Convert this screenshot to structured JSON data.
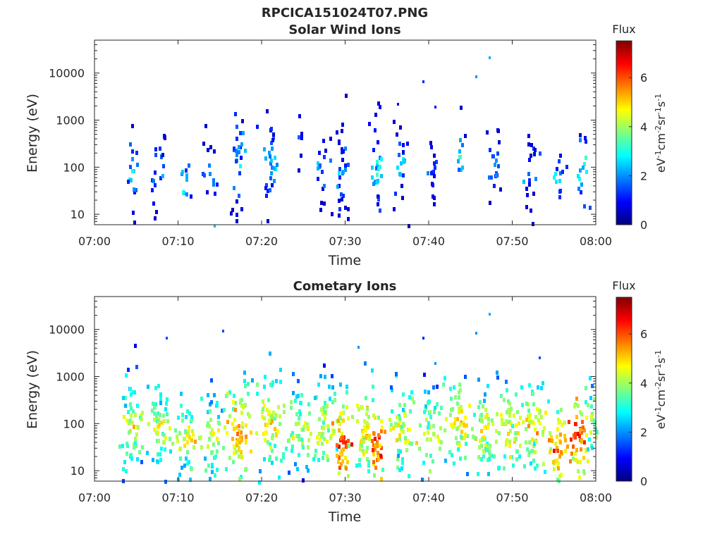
{
  "figure": {
    "title": "RPCICA151024T07.PNG"
  },
  "colormap": [
    "#00007f",
    "#0000ff",
    "#007fff",
    "#00ffff",
    "#7fff7f",
    "#ffff00",
    "#ff7f00",
    "#ff0000",
    "#7f0000"
  ],
  "chart_data": [
    {
      "type": "heatmap",
      "title": "Solar Wind Ions",
      "xlabel": "Time",
      "ylabel": "Energy (eV)",
      "x_ticks": [
        "07:00",
        "07:10",
        "07:20",
        "07:30",
        "07:40",
        "07:50",
        "08:00"
      ],
      "x_range_min": [
        0,
        60
      ],
      "y_ticks": [
        "10",
        "100",
        "1000",
        "10000"
      ],
      "y_scale": "log",
      "ylim": [
        6,
        50000
      ],
      "colorbar": {
        "label": "Flux",
        "unit": "eV-1cm-2sr-1s-1",
        "ticks": [
          "0",
          "2",
          "4",
          "6"
        ],
        "range": [
          0,
          7.5
        ]
      },
      "grid": false,
      "bursts": [
        {
          "t": 4.5,
          "e": 80,
          "v": 2.5,
          "w": 0.6,
          "spread": 0.5,
          "n": 18
        },
        {
          "t": 7.5,
          "e": 90,
          "v": 2.2,
          "w": 0.8,
          "spread": 0.5,
          "n": 22
        },
        {
          "t": 10.8,
          "e": 50,
          "v": 2.5,
          "w": 0.6,
          "spread": 0.3,
          "n": 10
        },
        {
          "t": 13.5,
          "e": 90,
          "v": 1.8,
          "w": 0.8,
          "spread": 0.5,
          "n": 14
        },
        {
          "t": 17.0,
          "e": 130,
          "v": 2.3,
          "w": 0.7,
          "spread": 0.7,
          "n": 28
        },
        {
          "t": 21.0,
          "e": 160,
          "v": 2.4,
          "w": 0.8,
          "spread": 0.6,
          "n": 30
        },
        {
          "t": 24.5,
          "e": 400,
          "v": 1.5,
          "w": 0.3,
          "spread": 0.3,
          "n": 6
        },
        {
          "t": 27.0,
          "e": 110,
          "v": 1.8,
          "w": 0.8,
          "spread": 0.5,
          "n": 18
        },
        {
          "t": 29.5,
          "e": 80,
          "v": 1.8,
          "w": 0.7,
          "spread": 0.6,
          "n": 34
        },
        {
          "t": 33.7,
          "e": 100,
          "v": 2.8,
          "w": 0.6,
          "spread": 0.6,
          "n": 28
        },
        {
          "t": 36.5,
          "e": 120,
          "v": 2.2,
          "w": 0.7,
          "spread": 0.5,
          "n": 22
        },
        {
          "t": 40.5,
          "e": 90,
          "v": 1.5,
          "w": 0.6,
          "spread": 0.5,
          "n": 16
        },
        {
          "t": 43.8,
          "e": 180,
          "v": 2.5,
          "w": 0.5,
          "spread": 0.5,
          "n": 12
        },
        {
          "t": 47.5,
          "e": 110,
          "v": 1.8,
          "w": 0.8,
          "spread": 0.5,
          "n": 20
        },
        {
          "t": 52.0,
          "e": 90,
          "v": 1.8,
          "w": 0.8,
          "spread": 0.5,
          "n": 22
        },
        {
          "t": 55.5,
          "e": 60,
          "v": 2.5,
          "w": 0.6,
          "spread": 0.4,
          "n": 14
        },
        {
          "t": 58.5,
          "e": 90,
          "v": 2.8,
          "w": 0.6,
          "spread": 0.5,
          "n": 16
        }
      ],
      "isolated_points": [
        {
          "t": 47.2,
          "e": 23000,
          "v": 2.2
        },
        {
          "t": 45.6,
          "e": 9000,
          "v": 2.0
        },
        {
          "t": 39.2,
          "e": 7000,
          "v": 1.2
        },
        {
          "t": 40.7,
          "e": 2000,
          "v": 1.0
        },
        {
          "t": 36.2,
          "e": 2300,
          "v": 1.0
        },
        {
          "t": 14.3,
          "e": 6,
          "v": 2.3
        }
      ]
    },
    {
      "type": "heatmap",
      "title": "Cometary Ions",
      "xlabel": "Time",
      "ylabel": "Energy (eV)",
      "x_ticks": [
        "07:00",
        "07:10",
        "07:20",
        "07:30",
        "07:40",
        "07:50",
        "08:00"
      ],
      "x_range_min": [
        0,
        60
      ],
      "y_ticks": [
        "10",
        "100",
        "1000",
        "10000"
      ],
      "y_scale": "log",
      "ylim": [
        6,
        50000
      ],
      "colorbar": {
        "label": "Flux",
        "unit": "eV-1cm-2sr-1s-1",
        "ticks": [
          "0",
          "2",
          "4",
          "6"
        ],
        "range": [
          0,
          7.5
        ]
      },
      "grid": false,
      "bursts": [
        {
          "t": 4.5,
          "e": 90,
          "v": 4.2,
          "w": 1.2,
          "spread": 0.55,
          "n": 60
        },
        {
          "t": 7.5,
          "e": 90,
          "v": 4.4,
          "w": 1.3,
          "spread": 0.55,
          "n": 60
        },
        {
          "t": 10.8,
          "e": 50,
          "v": 4.6,
          "w": 1.1,
          "spread": 0.45,
          "n": 50
        },
        {
          "t": 14.0,
          "e": 60,
          "v": 4.2,
          "w": 1.2,
          "spread": 0.5,
          "n": 50
        },
        {
          "t": 17.2,
          "e": 70,
          "v": 5.3,
          "w": 1.2,
          "spread": 0.6,
          "n": 70
        },
        {
          "t": 20.8,
          "e": 90,
          "v": 4.8,
          "w": 1.3,
          "spread": 0.6,
          "n": 70
        },
        {
          "t": 24.5,
          "e": 90,
          "v": 4.2,
          "w": 1.1,
          "spread": 0.55,
          "n": 55
        },
        {
          "t": 27.5,
          "e": 90,
          "v": 4.5,
          "w": 1.2,
          "spread": 0.55,
          "n": 60
        },
        {
          "t": 29.5,
          "e": 45,
          "v": 6.2,
          "w": 0.8,
          "spread": 0.45,
          "n": 50
        },
        {
          "t": 32.0,
          "e": 80,
          "v": 4.8,
          "w": 1.1,
          "spread": 0.55,
          "n": 55
        },
        {
          "t": 33.8,
          "e": 35,
          "v": 6.0,
          "w": 0.7,
          "spread": 0.4,
          "n": 40
        },
        {
          "t": 36.5,
          "e": 80,
          "v": 4.6,
          "w": 1.2,
          "spread": 0.55,
          "n": 60
        },
        {
          "t": 40.0,
          "e": 60,
          "v": 4.4,
          "w": 1.1,
          "spread": 0.5,
          "n": 45
        },
        {
          "t": 43.5,
          "e": 100,
          "v": 4.8,
          "w": 1.2,
          "spread": 0.55,
          "n": 60
        },
        {
          "t": 46.5,
          "e": 80,
          "v": 4.6,
          "w": 1.1,
          "spread": 0.55,
          "n": 55
        },
        {
          "t": 49.5,
          "e": 90,
          "v": 4.8,
          "w": 1.2,
          "spread": 0.55,
          "n": 60
        },
        {
          "t": 52.5,
          "e": 90,
          "v": 4.8,
          "w": 1.2,
          "spread": 0.55,
          "n": 60
        },
        {
          "t": 55.3,
          "e": 35,
          "v": 5.6,
          "w": 0.9,
          "spread": 0.45,
          "n": 45
        },
        {
          "t": 57.8,
          "e": 60,
          "v": 6.0,
          "w": 0.9,
          "spread": 0.5,
          "n": 50
        },
        {
          "t": 59.3,
          "e": 120,
          "v": 4.2,
          "w": 0.6,
          "spread": 0.55,
          "n": 25
        }
      ],
      "isolated_points": [
        {
          "t": 47.2,
          "e": 23000,
          "v": 2.2
        },
        {
          "t": 45.6,
          "e": 9000,
          "v": 2.0
        },
        {
          "t": 39.2,
          "e": 7000,
          "v": 1.2
        },
        {
          "t": 15.3,
          "e": 10000,
          "v": 1.5
        },
        {
          "t": 8.5,
          "e": 7000,
          "v": 1.5
        },
        {
          "t": 31.5,
          "e": 4500,
          "v": 2.0
        },
        {
          "t": 53.2,
          "e": 2700,
          "v": 1.5
        },
        {
          "t": 40.7,
          "e": 2000,
          "v": 2.0
        }
      ]
    }
  ]
}
